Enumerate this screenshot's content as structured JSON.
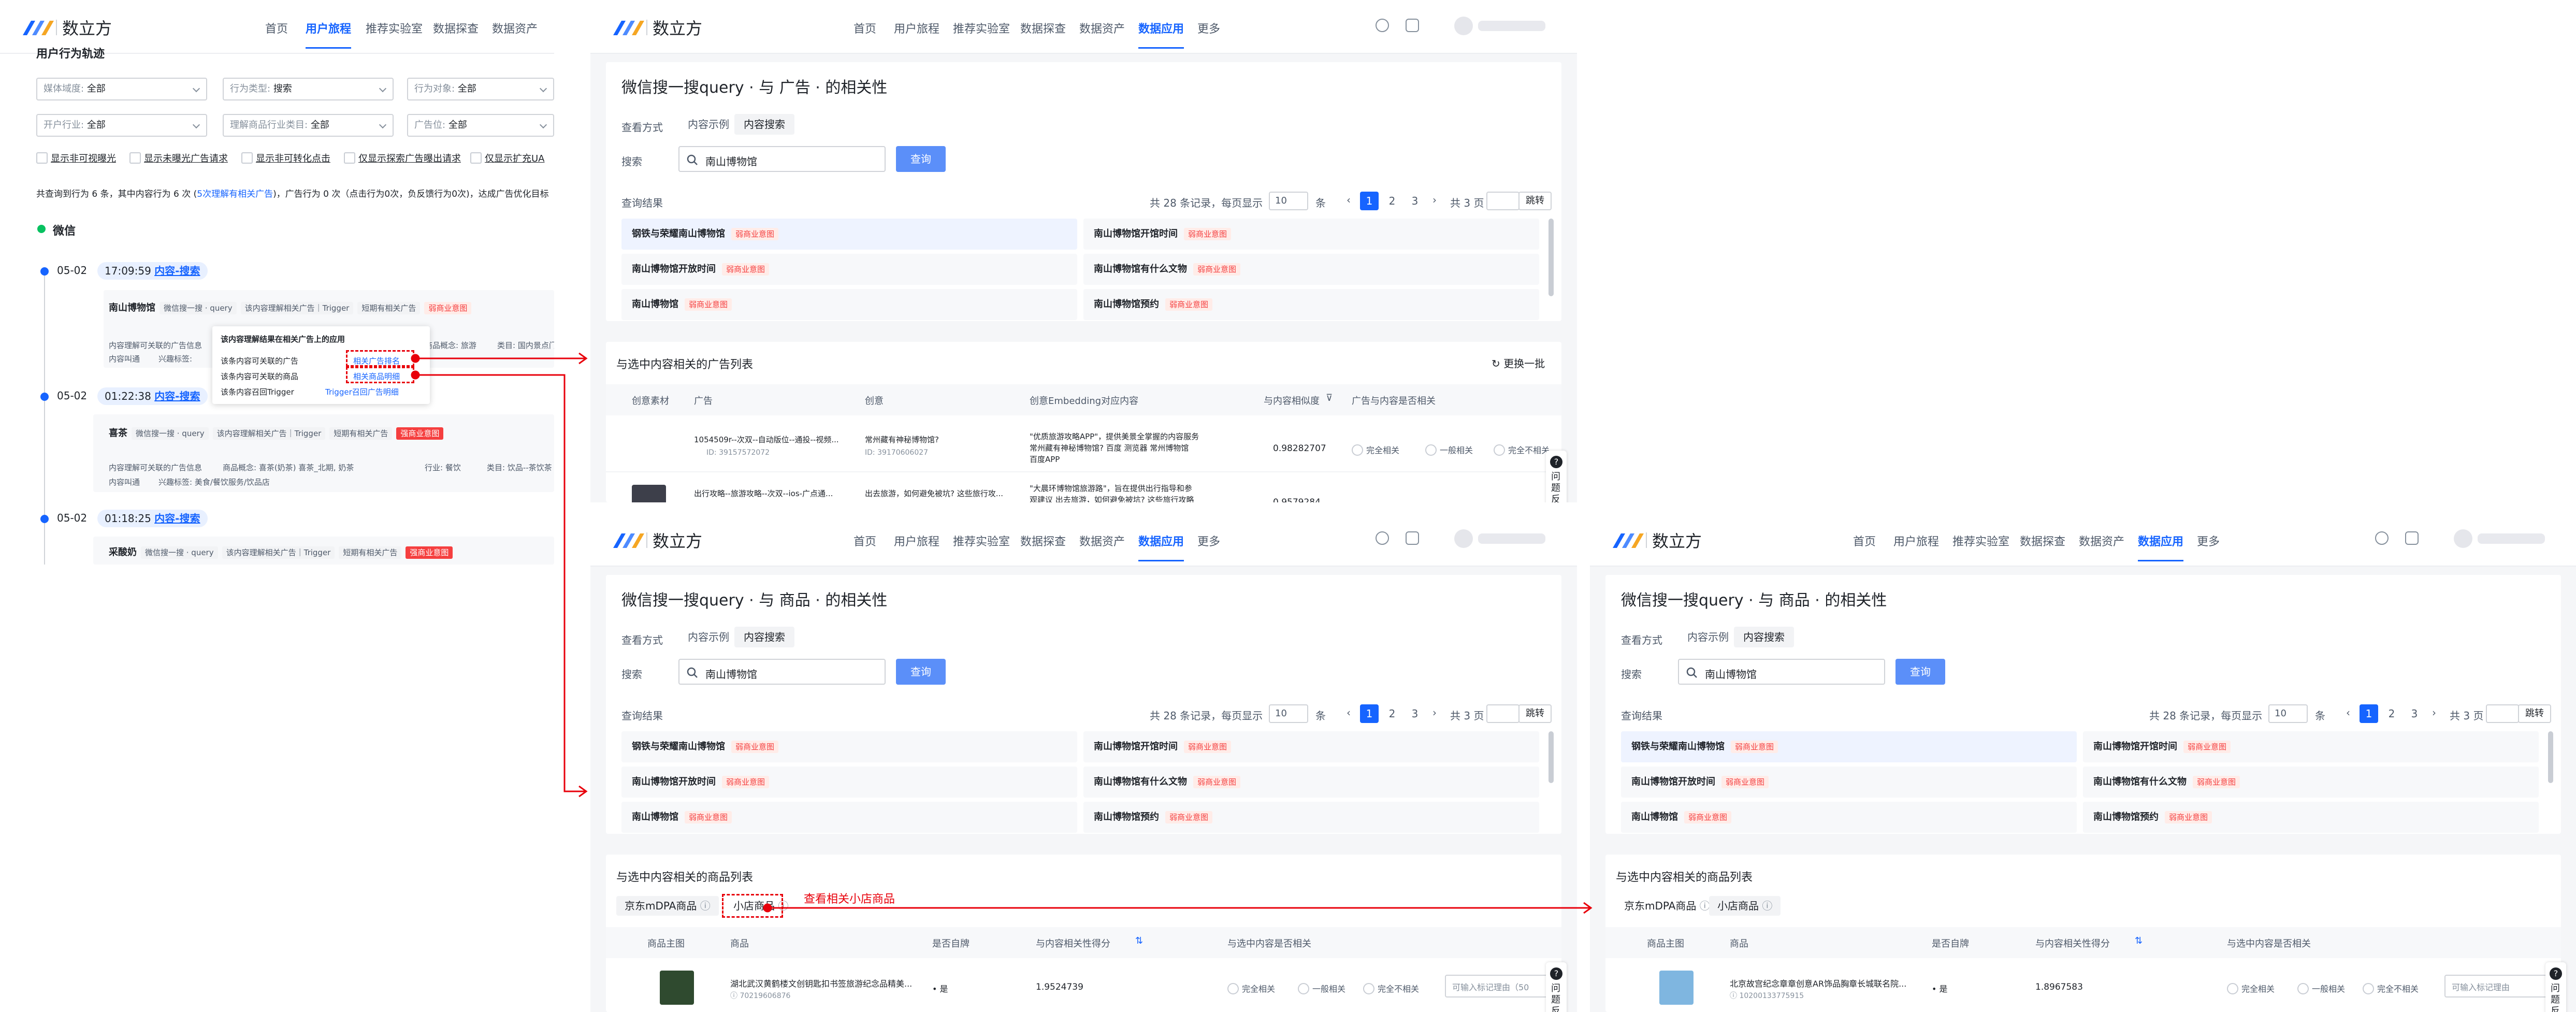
{
  "app": {
    "brand": "数立方",
    "nav": [
      "首页",
      "用户旅程",
      "推荐实验室",
      "数据探查",
      "数据资产",
      "数据应用",
      "更多"
    ]
  },
  "left_panel": {
    "nav": [
      "首页",
      "用户旅程",
      "推荐实验室",
      "数据探查",
      "数据资产"
    ],
    "section_title": "用户行为轨迹",
    "filters": [
      {
        "label": "媒体域度:",
        "value": "全部"
      },
      {
        "label": "行为类型:",
        "value": "搜索"
      },
      {
        "label": "行为对象:",
        "value": "全部"
      },
      {
        "label": "开户行业:",
        "value": "全部"
      },
      {
        "label": "理解商品行业类目:",
        "value": "全部"
      },
      {
        "label": "广告位:",
        "value": "全部"
      }
    ],
    "checkboxes": [
      "显示非可视曝光",
      "显示未曝光广告请求",
      "显示非可转化点击",
      "仅显示探索广告曝出请求",
      "仅显示扩充UA"
    ],
    "summary_prefix": "共查询到行为 6 条，其中内容行为 6 次 (",
    "summary_link": "5次理解有相关广告",
    "summary_suffix": ")，广告行为 0 次（点击行为0次，负反馈行为0次)，达成广告优化目标",
    "platform": "微信",
    "events": [
      {
        "date": "05-02",
        "time": "17:09:59",
        "type": "内容-搜索",
        "query": "南山博物馆",
        "chips": [
          "微信搜一搜 · query",
          "该内容理解相关广告｜Trigger",
          "短期有相关广告"
        ],
        "flag": "弱商业意图",
        "detail1": "内容理解可关联的广告信息",
        "detail1b": "商品概念: 旅游",
        "detail1c": "类目: 国内景点门",
        "detail2": "内容叫通",
        "detail2b": "兴趣标签:"
      },
      {
        "date": "05-02",
        "time": "01:22:38",
        "type": "内容-搜索",
        "query": "喜茶",
        "chips": [
          "微信搜一搜 · query",
          "该内容理解相关广告｜Trigger",
          "短期有相关广告"
        ],
        "flag": "强商业意图",
        "detail1": "内容理解可关联的广告信息",
        "detail1b": "商品概念: 喜茶(奶茶) 喜茶_北期, 奶茶",
        "detail1c": "行业: 餐饮",
        "detail1d": "类目: 饮品--茶饮茶",
        "detail2": "内容叫通",
        "detail2b": "兴趣标签: 美食/餐饮服务/饮品店"
      },
      {
        "date": "05-02",
        "time": "01:18:25",
        "type": "内容-搜索",
        "query": "采酸奶",
        "chips": [
          "微信搜一搜 · query",
          "该内容理解相关广告｜Trigger",
          "短期有相关广告"
        ],
        "flag": "强商业意图"
      }
    ],
    "dropdown": {
      "header": "该内容理解结果在相关广告上的应用",
      "rows": [
        "该条内容可关联的广告",
        "该条内容可关联的商品",
        "该条内容召回Trigger"
      ],
      "links": [
        "相关广告排名",
        "相关商品明细",
        "Trigger召回广告明细"
      ]
    }
  },
  "common": {
    "title_ad": "微信搜一搜query · 与 广告 · 的相关性",
    "title_goods": "微信搜一搜query · 与 商品 · 的相关性",
    "view_label": "查看方式",
    "tabs": [
      "内容示例",
      "内容搜索"
    ],
    "search_label": "搜索",
    "search_value": "南山博物馆",
    "query_btn": "查询",
    "results_label": "查询结果",
    "pager": {
      "total": "共 28 条记录，每页显示",
      "size": "10",
      "unit": "条",
      "pages": [
        "1",
        "2",
        "3"
      ],
      "page_total": "共 3 页",
      "jump": "跳转"
    },
    "results": [
      {
        "text": "钢铁与荣耀南山博物馆",
        "tag": "弱商业意图"
      },
      {
        "text": "南山博物馆开馆时间",
        "tag": "弱商业意图"
      },
      {
        "text": "南山博物馆开放时间",
        "tag": "弱商业意图"
      },
      {
        "text": "南山博物馆有什么文物",
        "tag": "弱商业意图"
      },
      {
        "text": "南山博物馆",
        "tag": "弱商业意图"
      },
      {
        "text": "南山博物馆预约",
        "tag": "弱商业意图"
      }
    ],
    "radios": [
      "完全相关",
      "一般相关",
      "完全不相关"
    ]
  },
  "ads_panel": {
    "list_title": "与选中内容相关的广告列表",
    "refresh": "更换一批",
    "headers": [
      "创意素材",
      "广告",
      "创意",
      "创意Embedding对应内容",
      "与内容相似度",
      "广告与内容是否相关"
    ],
    "rows": [
      {
        "ad": "1054509r--次双--自动版位--通投--视频...",
        "ad_id": "ID: 39157572072",
        "creative": "常州藏有神秘博物馆?",
        "creative_id": "ID: 39170606027",
        "emb1": "\"优质旅游攻略APP\"，提供美景全掌握的内容服务",
        "emb2": "常州藏有神秘博物馆? 百度 测览器 常州博物馆",
        "emb3": "百度APP",
        "sim": "0.98282707"
      },
      {
        "ad": "出行攻略--旅游攻略--次双--ios-广点通...",
        "ad_id": "",
        "creative": "出去旅游，如何避免被坑? 这些旅行攻...",
        "creative_id": "",
        "emb1": "\"大晨环博物馆旅游路\"，旨在提供出行指导和参",
        "emb2": "观建议 出去旅游，如何避免被坑? 这些旅行攻略",
        "emb3": "",
        "sim": "0.9579284"
      }
    ],
    "help": "问题反"
  },
  "goods_panel": {
    "list_title": "与选中内容相关的商品列表",
    "subtabs": [
      "京东mDPA商品",
      "小店商品"
    ],
    "annotation": "查看相关小店商品",
    "headers": [
      "商品主图",
      "商品",
      "是否自牌",
      "与内容相关性得分",
      "与选中内容是否相关"
    ],
    "row": {
      "name": "湖北武汉黄鹤楼文创钥匙扣书签旅游纪念品精美...",
      "id": "70219606876",
      "own": "是",
      "score": "1.9524739",
      "reason": "可输入标记理由（50"
    }
  },
  "goods_panel2": {
    "subtabs": [
      "京东mDPA商品",
      "小店商品"
    ],
    "row": {
      "name": "北京故宫纪念章章创意AR饰品胸章长城联名院...",
      "id": "10200133775915",
      "own": "是",
      "score": "1.8967583",
      "reason": "可输入标记理由"
    }
  },
  "colors": {
    "primary": "#1664ff",
    "annotation": "#e8000b",
    "tag_red": "#f53f3f"
  }
}
